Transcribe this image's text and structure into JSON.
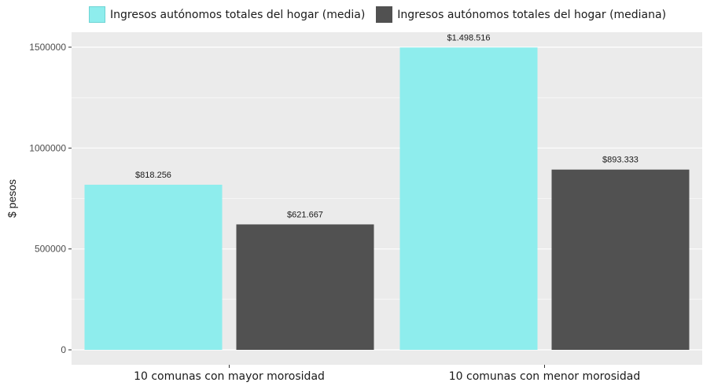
{
  "chart_data": {
    "type": "bar",
    "title": "",
    "xlabel": "",
    "ylabel": "$ pesos",
    "categories": [
      "10 comunas con mayor morosidad",
      "10 comunas con menor morosidad"
    ],
    "series": [
      {
        "name": "Ingresos autónomos totales del hogar (media)",
        "values": [
          818256,
          1498516
        ],
        "labels": [
          "$818.256",
          "$1.498.516"
        ],
        "color": "#8EEDED"
      },
      {
        "name": "Ingresos autónomos totales del hogar (mediana)",
        "values": [
          621667,
          893333
        ],
        "labels": [
          "$621.667",
          "$893.333"
        ],
        "color": "#515151"
      }
    ],
    "ylim": [
      0,
      1500000
    ],
    "yticks": [
      0,
      500000,
      1000000,
      1500000
    ],
    "ytick_labels": [
      "0",
      "500000",
      "1000000",
      "1500000"
    ],
    "grid": true,
    "legend_position": "top",
    "panel_background": "#EBEBEB"
  }
}
